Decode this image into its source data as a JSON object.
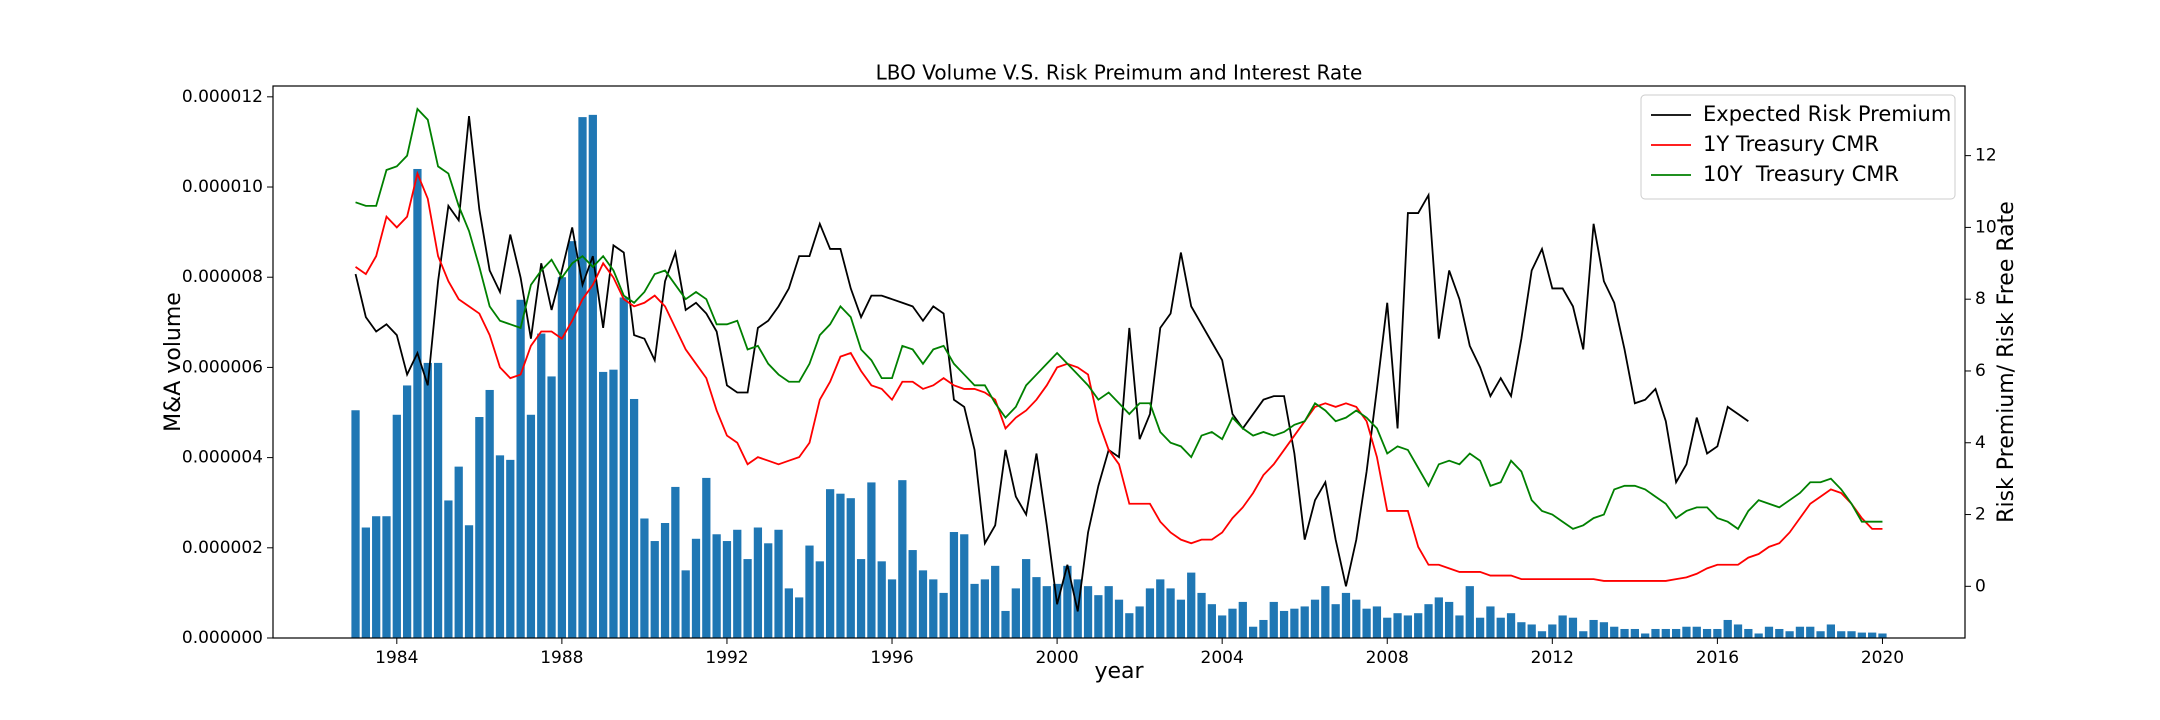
{
  "chart_data": {
    "type": "combo",
    "title": "LBO Volume V.S. Risk Preimum and Interest Rate",
    "xlabel": "year",
    "ylabel": "M&A volume",
    "y2label": "Risk Premium/ Risk Free Rate",
    "legend": "upper right",
    "xlim": [
      1981,
      2022
    ],
    "xticks": [
      1984,
      1988,
      1992,
      1996,
      2000,
      2004,
      2008,
      2012,
      2016,
      2020
    ],
    "ylim": [
      0,
      1.224e-05
    ],
    "yticks": [
      {
        "value": 0,
        "label": "0.000000"
      },
      {
        "value": 2e-06,
        "label": "0.000002"
      },
      {
        "value": 4e-06,
        "label": "0.000004"
      },
      {
        "value": 6e-06,
        "label": "0.000006"
      },
      {
        "value": 8e-06,
        "label": "0.000008"
      },
      {
        "value": 1e-05,
        "label": "0.000010"
      },
      {
        "value": 1.2e-05,
        "label": "0.000012"
      }
    ],
    "y2lim": [
      -1.44,
      13.94
    ],
    "y2ticks": [
      0,
      2,
      4,
      6,
      8,
      10,
      12
    ],
    "x": [
      1983,
      1983.25,
      1983.5,
      1983.75,
      1984,
      1984.25,
      1984.5,
      1984.75,
      1985,
      1985.25,
      1985.5,
      1985.75,
      1986,
      1986.25,
      1986.5,
      1986.75,
      1987,
      1987.25,
      1987.5,
      1987.75,
      1988,
      1988.25,
      1988.5,
      1988.75,
      1989,
      1989.25,
      1989.5,
      1989.75,
      1990,
      1990.25,
      1990.5,
      1990.75,
      1991,
      1991.25,
      1991.5,
      1991.75,
      1992,
      1992.25,
      1992.5,
      1992.75,
      1993,
      1993.25,
      1993.5,
      1993.75,
      1994,
      1994.25,
      1994.5,
      1994.75,
      1995,
      1995.25,
      1995.5,
      1995.75,
      1996,
      1996.25,
      1996.5,
      1996.75,
      1997,
      1997.25,
      1997.5,
      1997.75,
      1998,
      1998.25,
      1998.5,
      1998.75,
      1999,
      1999.25,
      1999.5,
      1999.75,
      2000,
      2000.25,
      2000.5,
      2000.75,
      2001,
      2001.25,
      2001.5,
      2001.75,
      2002,
      2002.25,
      2002.5,
      2002.75,
      2003,
      2003.25,
      2003.5,
      2003.75,
      2004,
      2004.25,
      2004.5,
      2004.75,
      2005,
      2005.25,
      2005.5,
      2005.75,
      2006,
      2006.25,
      2006.5,
      2006.75,
      2007,
      2007.25,
      2007.5,
      2007.75,
      2008,
      2008.25,
      2008.5,
      2008.75,
      2009,
      2009.25,
      2009.5,
      2009.75,
      2010,
      2010.25,
      2010.5,
      2010.75,
      2011,
      2011.25,
      2011.5,
      2011.75,
      2012,
      2012.25,
      2012.5,
      2012.75,
      2013,
      2013.25,
      2013.5,
      2013.75,
      2014,
      2014.25,
      2014.5,
      2014.75,
      2015,
      2015.25,
      2015.5,
      2015.75,
      2016,
      2016.25,
      2016.5,
      2016.75,
      2017,
      2017.25,
      2017.5,
      2017.75,
      2018,
      2018.25,
      2018.5,
      2018.75,
      2019,
      2019.25,
      2019.5,
      2019.75,
      2020
    ],
    "series": [
      {
        "type": "bar",
        "color": "#1f77b4",
        "values": [
          5.05e-06,
          2.45e-06,
          2.7e-06,
          2.7e-06,
          4.95e-06,
          5.6e-06,
          1.04e-05,
          6.1e-06,
          6.1e-06,
          3.05e-06,
          3.8e-06,
          2.5e-06,
          4.9e-06,
          5.5e-06,
          4.05e-06,
          3.95e-06,
          7.5e-06,
          4.95e-06,
          6.75e-06,
          5.8e-06,
          8e-06,
          8.8e-06,
          1.155e-05,
          1.16e-05,
          5.9e-06,
          5.95e-06,
          7.55e-06,
          5.3e-06,
          2.65e-06,
          2.15e-06,
          2.55e-06,
          3.35e-06,
          1.5e-06,
          2.2e-06,
          3.55e-06,
          2.3e-06,
          2.15e-06,
          2.4e-06,
          1.75e-06,
          2.45e-06,
          2.1e-06,
          2.4e-06,
          1.1e-06,
          9e-07,
          2.05e-06,
          1.7e-06,
          3.3e-06,
          3.2e-06,
          3.1e-06,
          1.75e-06,
          3.45e-06,
          1.7e-06,
          1.3e-06,
          3.5e-06,
          1.95e-06,
          1.5e-06,
          1.3e-06,
          1e-06,
          2.35e-06,
          2.3e-06,
          1.2e-06,
          1.3e-06,
          1.6e-06,
          6e-07,
          1.1e-06,
          1.75e-06,
          1.35e-06,
          1.15e-06,
          1.2e-06,
          1.6e-06,
          1.3e-06,
          1.15e-06,
          9.5e-07,
          1.15e-06,
          8.5e-07,
          5.5e-07,
          7e-07,
          1.1e-06,
          1.3e-06,
          1.1e-06,
          8.5e-07,
          1.45e-06,
          1e-06,
          7.5e-07,
          5e-07,
          6.5e-07,
          8e-07,
          2.5e-07,
          4e-07,
          8e-07,
          6e-07,
          6.5e-07,
          7e-07,
          8.5e-07,
          1.15e-06,
          7.5e-07,
          1e-06,
          8.5e-07,
          6.5e-07,
          7e-07,
          4.5e-07,
          5.5e-07,
          5e-07,
          5.5e-07,
          7.5e-07,
          9e-07,
          8e-07,
          5e-07,
          1.15e-06,
          4.5e-07,
          7e-07,
          4.5e-07,
          5.5e-07,
          3.5e-07,
          3e-07,
          1.5e-07,
          3e-07,
          5e-07,
          4.5e-07,
          1.5e-07,
          4e-07,
          3.5e-07,
          2.5e-07,
          2e-07,
          2e-07,
          1e-07,
          2e-07,
          2e-07,
          2e-07,
          2.5e-07,
          2.5e-07,
          2e-07,
          2e-07,
          4e-07,
          3e-07,
          2e-07,
          1e-07,
          2.5e-07,
          2e-07,
          1.5e-07,
          2.5e-07,
          2.5e-07,
          1.5e-07,
          3e-07,
          1.5e-07,
          1.5e-07,
          1.2e-07,
          1.2e-07,
          1e-07
        ]
      },
      {
        "type": "line",
        "axis": "y2",
        "name": "Expected Risk Premium",
        "color": "#000000",
        "values": [
          8.7,
          7.5,
          7.1,
          7.3,
          7.0,
          5.9,
          6.5,
          5.6,
          8.5,
          10.6,
          10.2,
          13.1,
          10.5,
          8.8,
          8.2,
          9.8,
          8.6,
          6.9,
          9.0,
          7.7,
          8.8,
          10.0,
          8.4,
          9.2,
          7.2,
          9.5,
          9.3,
          7.0,
          6.9,
          6.3,
          8.5,
          9.3,
          7.7,
          7.9,
          7.6,
          7.1,
          5.6,
          5.4,
          5.4,
          7.2,
          7.4,
          7.8,
          8.3,
          9.2,
          9.2,
          10.1,
          9.4,
          9.4,
          8.3,
          7.5,
          8.1,
          8.1,
          8.0,
          7.9,
          7.8,
          7.4,
          7.8,
          7.6,
          5.2,
          5.0,
          3.8,
          1.2,
          1.7,
          3.8,
          2.5,
          2.0,
          3.7,
          1.7,
          -0.5,
          0.6,
          -0.7,
          1.5,
          2.8,
          3.8,
          3.6,
          7.2,
          4.1,
          4.8,
          7.2,
          7.6,
          9.3,
          7.8,
          7.3,
          6.8,
          6.3,
          4.8,
          4.4,
          4.8,
          5.2,
          5.3,
          5.3,
          3.7,
          1.3,
          2.4,
          2.9,
          1.3,
          0.0,
          1.3,
          3.2,
          5.5,
          7.9,
          4.4,
          10.4,
          10.4,
          10.9,
          6.9,
          8.8,
          8.0,
          6.7,
          6.1,
          5.3,
          5.8,
          5.3,
          6.9,
          8.8,
          9.4,
          8.3,
          8.3,
          7.8,
          6.6,
          10.1,
          8.5,
          7.9,
          6.6,
          5.1,
          5.2,
          5.5,
          4.6,
          2.9,
          3.4,
          4.7,
          3.7,
          3.9,
          5.0,
          4.8,
          4.6,
          null,
          null,
          null,
          null,
          null,
          null,
          null,
          null,
          null,
          null,
          null,
          null,
          null
        ]
      },
      {
        "type": "line",
        "axis": "y2",
        "name": "1Y Treasury CMR",
        "color": "#ff0000",
        "values": [
          8.9,
          8.7,
          9.2,
          10.3,
          10.0,
          10.3,
          11.5,
          10.8,
          9.2,
          8.5,
          8.0,
          7.8,
          7.6,
          7.0,
          6.1,
          5.8,
          5.9,
          6.7,
          7.1,
          7.1,
          6.9,
          7.4,
          8.0,
          8.4,
          9.0,
          8.6,
          8.0,
          7.8,
          7.9,
          8.1,
          7.8,
          7.2,
          6.6,
          6.2,
          5.8,
          4.9,
          4.2,
          4.0,
          3.4,
          3.6,
          3.5,
          3.4,
          3.5,
          3.6,
          4.0,
          5.2,
          5.7,
          6.4,
          6.5,
          6.0,
          5.6,
          5.5,
          5.2,
          5.7,
          5.7,
          5.5,
          5.6,
          5.8,
          5.6,
          5.5,
          5.5,
          5.4,
          5.2,
          4.4,
          4.7,
          4.9,
          5.2,
          5.6,
          6.1,
          6.2,
          6.1,
          5.9,
          4.6,
          3.8,
          3.4,
          2.3,
          2.3,
          2.3,
          1.8,
          1.5,
          1.3,
          1.2,
          1.3,
          1.3,
          1.5,
          1.9,
          2.2,
          2.6,
          3.1,
          3.4,
          3.8,
          4.2,
          4.6,
          5.0,
          5.1,
          5.0,
          5.1,
          5.0,
          4.6,
          3.6,
          2.1,
          2.1,
          2.1,
          1.1,
          0.6,
          0.6,
          0.5,
          0.4,
          0.4,
          0.4,
          0.3,
          0.3,
          0.3,
          0.2,
          0.2,
          0.2,
          0.2,
          0.2,
          0.2,
          0.2,
          0.2,
          0.15,
          0.15,
          0.15,
          0.15,
          0.15,
          0.15,
          0.15,
          0.2,
          0.25,
          0.35,
          0.5,
          0.6,
          0.6,
          0.6,
          0.8,
          0.9,
          1.1,
          1.2,
          1.5,
          1.9,
          2.3,
          2.5,
          2.7,
          2.6,
          2.3,
          1.9,
          1.6,
          1.6
        ]
      },
      {
        "type": "line",
        "axis": "y2",
        "name": "10Y  Treasury CMR",
        "color": "#008000",
        "values": [
          10.7,
          10.6,
          10.6,
          11.6,
          11.7,
          12.0,
          13.3,
          13.0,
          11.7,
          11.5,
          10.6,
          9.9,
          8.9,
          7.8,
          7.4,
          7.3,
          7.2,
          8.4,
          8.8,
          9.1,
          8.6,
          9.0,
          9.2,
          8.9,
          9.2,
          8.8,
          8.1,
          7.9,
          8.2,
          8.7,
          8.8,
          8.4,
          8.0,
          8.2,
          8.0,
          7.3,
          7.3,
          7.4,
          6.6,
          6.7,
          6.2,
          5.9,
          5.7,
          5.7,
          6.2,
          7.0,
          7.3,
          7.8,
          7.5,
          6.6,
          6.3,
          5.8,
          5.8,
          6.7,
          6.6,
          6.2,
          6.6,
          6.7,
          6.2,
          5.9,
          5.6,
          5.6,
          5.1,
          4.7,
          5.0,
          5.6,
          5.9,
          6.2,
          6.5,
          6.2,
          5.9,
          5.6,
          5.2,
          5.4,
          5.1,
          4.8,
          5.1,
          5.1,
          4.3,
          4.0,
          3.9,
          3.6,
          4.2,
          4.3,
          4.1,
          4.7,
          4.4,
          4.2,
          4.3,
          4.2,
          4.3,
          4.5,
          4.6,
          5.1,
          4.9,
          4.6,
          4.7,
          4.9,
          4.7,
          4.4,
          3.7,
          3.9,
          3.8,
          3.3,
          2.8,
          3.4,
          3.5,
          3.4,
          3.7,
          3.5,
          2.8,
          2.9,
          3.5,
          3.2,
          2.4,
          2.1,
          2.0,
          1.8,
          1.6,
          1.7,
          1.9,
          2.0,
          2.7,
          2.8,
          2.8,
          2.7,
          2.5,
          2.3,
          1.9,
          2.1,
          2.2,
          2.2,
          1.9,
          1.8,
          1.6,
          2.1,
          2.4,
          2.3,
          2.2,
          2.4,
          2.6,
          2.9,
          2.9,
          3.0,
          2.7,
          2.3,
          1.8,
          1.8,
          1.8
        ]
      }
    ]
  }
}
